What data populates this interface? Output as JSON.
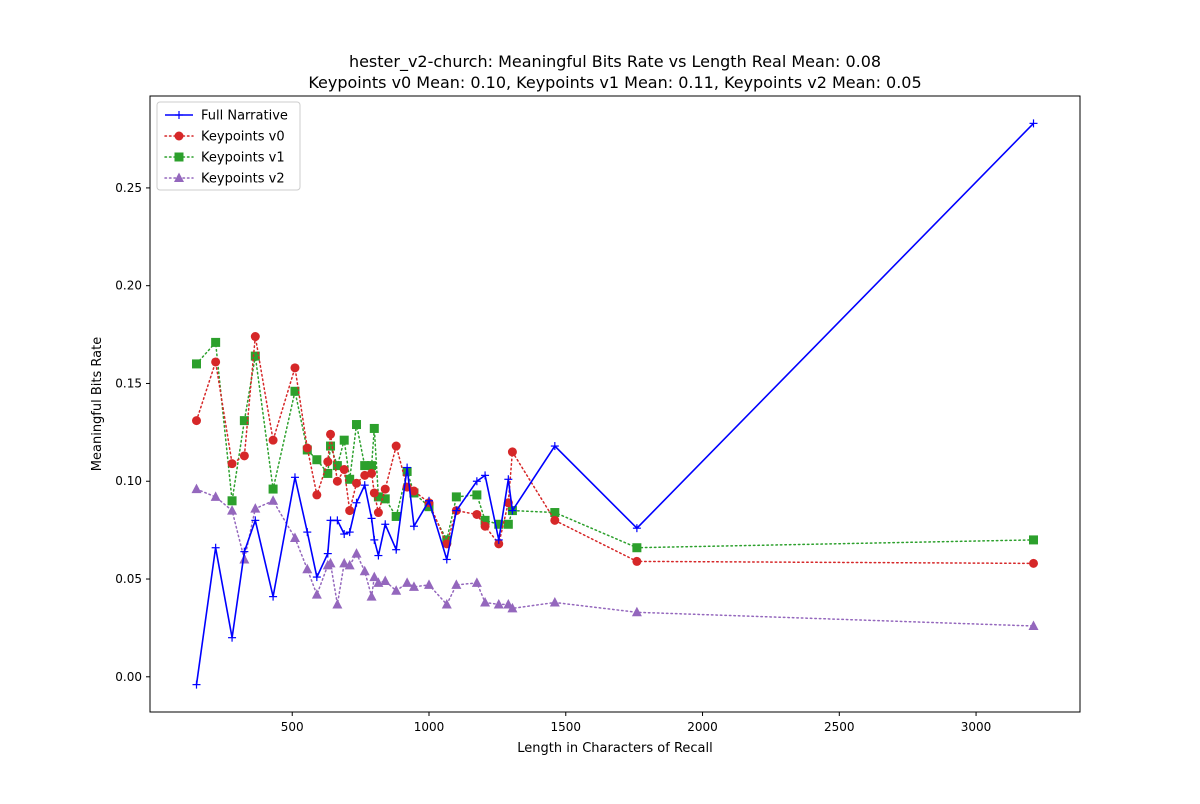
{
  "chart_data": {
    "type": "line",
    "title_line1": "hester_v2-church: Meaningful Bits Rate vs Length Real Mean: 0.08",
    "title_line2": "Keypoints v0 Mean: 0.10, Keypoints v1 Mean: 0.11, Keypoints v2 Mean: 0.05",
    "xlabel": "Length in Characters of Recall",
    "ylabel": "Meaningful Bits Rate",
    "xlim": [
      -20,
      3380
    ],
    "ylim": [
      -0.018,
      0.297
    ],
    "xticks": [
      500,
      1000,
      1500,
      2000,
      2500,
      3000
    ],
    "xtick_labels": [
      "500",
      "1000",
      "1500",
      "2000",
      "2500",
      "3000"
    ],
    "yticks": [
      0.0,
      0.05,
      0.1,
      0.15,
      0.2,
      0.25
    ],
    "ytick_labels": [
      "0.00",
      "0.05",
      "0.10",
      "0.15",
      "0.20",
      "0.25"
    ],
    "grid": false,
    "legend_position": "upper-left",
    "series": [
      {
        "name": "Full Narrative",
        "color": "#0000ff",
        "marker": "plus",
        "linestyle": "solid",
        "points": [
          [
            150,
            -0.004
          ],
          [
            220,
            0.066
          ],
          [
            280,
            0.02
          ],
          [
            325,
            0.064
          ],
          [
            365,
            0.08
          ],
          [
            430,
            0.041
          ],
          [
            510,
            0.102
          ],
          [
            555,
            0.074
          ],
          [
            590,
            0.051
          ],
          [
            630,
            0.063
          ],
          [
            640,
            0.08
          ],
          [
            665,
            0.08
          ],
          [
            690,
            0.073
          ],
          [
            710,
            0.074
          ],
          [
            735,
            0.089
          ],
          [
            765,
            0.098
          ],
          [
            790,
            0.081
          ],
          [
            800,
            0.07
          ],
          [
            815,
            0.062
          ],
          [
            840,
            0.078
          ],
          [
            880,
            0.065
          ],
          [
            920,
            0.107
          ],
          [
            945,
            0.077
          ],
          [
            1000,
            0.09
          ],
          [
            1065,
            0.06
          ],
          [
            1100,
            0.085
          ],
          [
            1175,
            0.1
          ],
          [
            1205,
            0.103
          ],
          [
            1255,
            0.07
          ],
          [
            1290,
            0.101
          ],
          [
            1305,
            0.085
          ],
          [
            1460,
            0.118
          ],
          [
            1760,
            0.076
          ],
          [
            3210,
            0.283
          ]
        ]
      },
      {
        "name": "Keypoints v0",
        "color": "#d62728",
        "marker": "circle",
        "linestyle": "dotted",
        "points": [
          [
            150,
            0.131
          ],
          [
            220,
            0.161
          ],
          [
            280,
            0.109
          ],
          [
            325,
            0.113
          ],
          [
            365,
            0.174
          ],
          [
            430,
            0.121
          ],
          [
            510,
            0.158
          ],
          [
            555,
            0.117
          ],
          [
            590,
            0.093
          ],
          [
            630,
            0.11
          ],
          [
            640,
            0.124
          ],
          [
            665,
            0.1
          ],
          [
            690,
            0.106
          ],
          [
            710,
            0.085
          ],
          [
            735,
            0.099
          ],
          [
            765,
            0.103
          ],
          [
            790,
            0.104
          ],
          [
            800,
            0.094
          ],
          [
            815,
            0.084
          ],
          [
            840,
            0.096
          ],
          [
            880,
            0.118
          ],
          [
            920,
            0.097
          ],
          [
            945,
            0.095
          ],
          [
            1000,
            0.089
          ],
          [
            1065,
            0.068
          ],
          [
            1100,
            0.085
          ],
          [
            1175,
            0.083
          ],
          [
            1205,
            0.077
          ],
          [
            1255,
            0.068
          ],
          [
            1290,
            0.089
          ],
          [
            1305,
            0.115
          ],
          [
            1460,
            0.08
          ],
          [
            1760,
            0.059
          ],
          [
            3210,
            0.058
          ]
        ]
      },
      {
        "name": "Keypoints v1",
        "color": "#2ca02c",
        "marker": "square",
        "linestyle": "dotted",
        "points": [
          [
            150,
            0.16
          ],
          [
            220,
            0.171
          ],
          [
            280,
            0.09
          ],
          [
            325,
            0.131
          ],
          [
            365,
            0.164
          ],
          [
            430,
            0.096
          ],
          [
            510,
            0.146
          ],
          [
            555,
            0.116
          ],
          [
            590,
            0.111
          ],
          [
            630,
            0.104
          ],
          [
            640,
            0.118
          ],
          [
            665,
            0.108
          ],
          [
            690,
            0.121
          ],
          [
            710,
            0.101
          ],
          [
            735,
            0.129
          ],
          [
            765,
            0.108
          ],
          [
            790,
            0.108
          ],
          [
            800,
            0.127
          ],
          [
            815,
            0.092
          ],
          [
            840,
            0.091
          ],
          [
            880,
            0.082
          ],
          [
            920,
            0.105
          ],
          [
            945,
            0.094
          ],
          [
            1000,
            0.087
          ],
          [
            1065,
            0.07
          ],
          [
            1100,
            0.092
          ],
          [
            1175,
            0.093
          ],
          [
            1205,
            0.08
          ],
          [
            1255,
            0.078
          ],
          [
            1290,
            0.078
          ],
          [
            1305,
            0.085
          ],
          [
            1460,
            0.084
          ],
          [
            1760,
            0.066
          ],
          [
            3210,
            0.07
          ]
        ]
      },
      {
        "name": "Keypoints v2",
        "color": "#9467bd",
        "marker": "triangle",
        "linestyle": "dotted",
        "points": [
          [
            150,
            0.096
          ],
          [
            220,
            0.092
          ],
          [
            280,
            0.085
          ],
          [
            325,
            0.06
          ],
          [
            365,
            0.086
          ],
          [
            430,
            0.09
          ],
          [
            510,
            0.071
          ],
          [
            555,
            0.055
          ],
          [
            590,
            0.042
          ],
          [
            630,
            0.057
          ],
          [
            640,
            0.058
          ],
          [
            665,
            0.037
          ],
          [
            690,
            0.058
          ],
          [
            710,
            0.057
          ],
          [
            735,
            0.063
          ],
          [
            765,
            0.054
          ],
          [
            790,
            0.041
          ],
          [
            800,
            0.051
          ],
          [
            815,
            0.048
          ],
          [
            840,
            0.049
          ],
          [
            880,
            0.044
          ],
          [
            920,
            0.048
          ],
          [
            945,
            0.046
          ],
          [
            1000,
            0.047
          ],
          [
            1065,
            0.037
          ],
          [
            1100,
            0.047
          ],
          [
            1175,
            0.048
          ],
          [
            1205,
            0.038
          ],
          [
            1255,
            0.037
          ],
          [
            1290,
            0.037
          ],
          [
            1305,
            0.035
          ],
          [
            1460,
            0.038
          ],
          [
            1760,
            0.033
          ],
          [
            3210,
            0.026
          ]
        ]
      }
    ]
  }
}
